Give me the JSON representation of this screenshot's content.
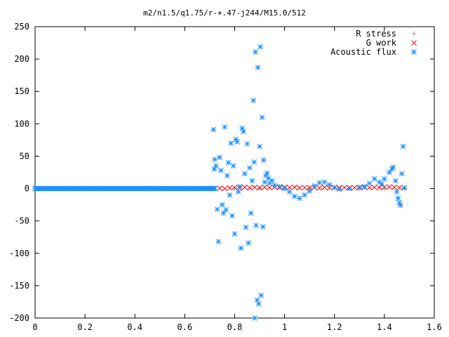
{
  "chart_data": {
    "type": "scatter",
    "title": "m2/n1.5/q1.75/r-+.47-j244/M15.0/512",
    "xlabel": "",
    "ylabel": "",
    "xlim": [
      0,
      1.6
    ],
    "ylim": [
      -200,
      250
    ],
    "xticks": [
      "0",
      "0.2",
      "0.4",
      "0.6",
      "0.8",
      "1",
      "1.2",
      "1.4",
      "1.6"
    ],
    "yticks": [
      "250",
      "200",
      "150",
      "100",
      "50",
      "0",
      "-50",
      "-100",
      "-150",
      "-200"
    ],
    "grid": false,
    "legend_position": "top-right",
    "series": [
      {
        "name": "R stress",
        "marker": "plus",
        "color": "#a0a0a0",
        "points": [
          [
            0.72,
            0.0
          ],
          [
            0.8,
            0.0
          ],
          [
            0.9,
            0.0
          ],
          [
            1.0,
            0.0
          ],
          [
            1.1,
            0.0
          ],
          [
            1.2,
            0.0
          ],
          [
            1.3,
            0.0
          ],
          [
            1.4,
            0.0
          ],
          [
            1.48,
            0.0
          ]
        ]
      },
      {
        "name": "G work",
        "marker": "cross",
        "color": "#ff0000",
        "points": [
          [
            0.72,
            0.0
          ],
          [
            0.74,
            0.5
          ],
          [
            0.76,
            0.0
          ],
          [
            0.78,
            1.0
          ],
          [
            0.8,
            1.5
          ],
          [
            0.82,
            0.5
          ],
          [
            0.84,
            2.0
          ],
          [
            0.86,
            1.0
          ],
          [
            0.88,
            2.0
          ],
          [
            0.9,
            1.0
          ],
          [
            0.92,
            2.0
          ],
          [
            0.94,
            1.5
          ],
          [
            0.96,
            2.0
          ],
          [
            0.98,
            1.5
          ],
          [
            1.0,
            2.0
          ],
          [
            1.02,
            1.5
          ],
          [
            1.04,
            2.0
          ],
          [
            1.06,
            1.0
          ],
          [
            1.08,
            1.5
          ],
          [
            1.1,
            1.0
          ],
          [
            1.12,
            1.5
          ],
          [
            1.14,
            1.0
          ],
          [
            1.16,
            2.0
          ],
          [
            1.18,
            1.0
          ],
          [
            1.2,
            1.5
          ],
          [
            1.22,
            1.0
          ],
          [
            1.24,
            1.5
          ],
          [
            1.26,
            1.0
          ],
          [
            1.28,
            1.5
          ],
          [
            1.3,
            1.0
          ],
          [
            1.32,
            2.0
          ],
          [
            1.34,
            1.5
          ],
          [
            1.36,
            2.0
          ],
          [
            1.38,
            1.5
          ],
          [
            1.4,
            2.0
          ],
          [
            1.42,
            2.5
          ],
          [
            1.44,
            2.0
          ],
          [
            1.46,
            1.5
          ],
          [
            1.48,
            1.0
          ]
        ]
      },
      {
        "name": "Acoustic flux",
        "marker": "star",
        "color": "#1e90ff",
        "points": [
          [
            0.715,
            91
          ],
          [
            0.72,
            45
          ],
          [
            0.718,
            30
          ],
          [
            0.725,
            35
          ],
          [
            0.73,
            -32
          ],
          [
            0.735,
            -82
          ],
          [
            0.74,
            48
          ],
          [
            0.745,
            28
          ],
          [
            0.75,
            -25
          ],
          [
            0.755,
            -38
          ],
          [
            0.76,
            95
          ],
          [
            0.765,
            -33
          ],
          [
            0.77,
            20
          ],
          [
            0.775,
            40
          ],
          [
            0.78,
            -10
          ],
          [
            0.785,
            70
          ],
          [
            0.79,
            -42
          ],
          [
            0.795,
            35
          ],
          [
            0.8,
            -70
          ],
          [
            0.805,
            76
          ],
          [
            0.81,
            72
          ],
          [
            0.815,
            -5
          ],
          [
            0.82,
            3
          ],
          [
            0.825,
            -92
          ],
          [
            0.83,
            93
          ],
          [
            0.835,
            88
          ],
          [
            0.84,
            23
          ],
          [
            0.845,
            -60
          ],
          [
            0.85,
            69
          ],
          [
            0.855,
            -84
          ],
          [
            0.86,
            32
          ],
          [
            0.865,
            -38
          ],
          [
            0.87,
            12
          ],
          [
            0.875,
            136
          ],
          [
            0.878,
            41
          ],
          [
            0.88,
            -200
          ],
          [
            0.883,
            211
          ],
          [
            0.886,
            -57
          ],
          [
            0.89,
            -172
          ],
          [
            0.893,
            187
          ],
          [
            0.896,
            -178
          ],
          [
            0.9,
            65
          ],
          [
            0.903,
            219
          ],
          [
            0.906,
            -165
          ],
          [
            0.91,
            110
          ],
          [
            0.913,
            -59
          ],
          [
            0.916,
            44
          ],
          [
            0.92,
            10
          ],
          [
            0.925,
            20
          ],
          [
            0.93,
            24
          ],
          [
            0.935,
            16
          ],
          [
            0.94,
            8
          ],
          [
            0.95,
            12
          ],
          [
            0.96,
            5
          ],
          [
            0.98,
            3
          ],
          [
            1.0,
            0
          ],
          [
            1.02,
            -5
          ],
          [
            1.04,
            -12
          ],
          [
            1.06,
            -15
          ],
          [
            1.08,
            -10
          ],
          [
            1.1,
            -4
          ],
          [
            1.12,
            4
          ],
          [
            1.14,
            9
          ],
          [
            1.16,
            10
          ],
          [
            1.18,
            6
          ],
          [
            1.2,
            2
          ],
          [
            1.22,
            -1
          ],
          [
            1.26,
            0
          ],
          [
            1.3,
            2
          ],
          [
            1.32,
            3
          ],
          [
            1.34,
            8
          ],
          [
            1.36,
            15
          ],
          [
            1.38,
            10
          ],
          [
            1.39,
            7
          ],
          [
            1.4,
            15
          ],
          [
            1.42,
            25
          ],
          [
            1.43,
            30
          ],
          [
            1.435,
            33
          ],
          [
            1.445,
            12
          ],
          [
            1.45,
            -5
          ],
          [
            1.455,
            -15
          ],
          [
            1.46,
            -22
          ],
          [
            1.465,
            -26
          ],
          [
            1.47,
            23
          ],
          [
            1.475,
            65
          ],
          [
            1.48,
            1
          ]
        ],
        "dense_line": {
          "x_from": 0.0,
          "x_to": 0.72,
          "y": 0
        }
      }
    ]
  }
}
